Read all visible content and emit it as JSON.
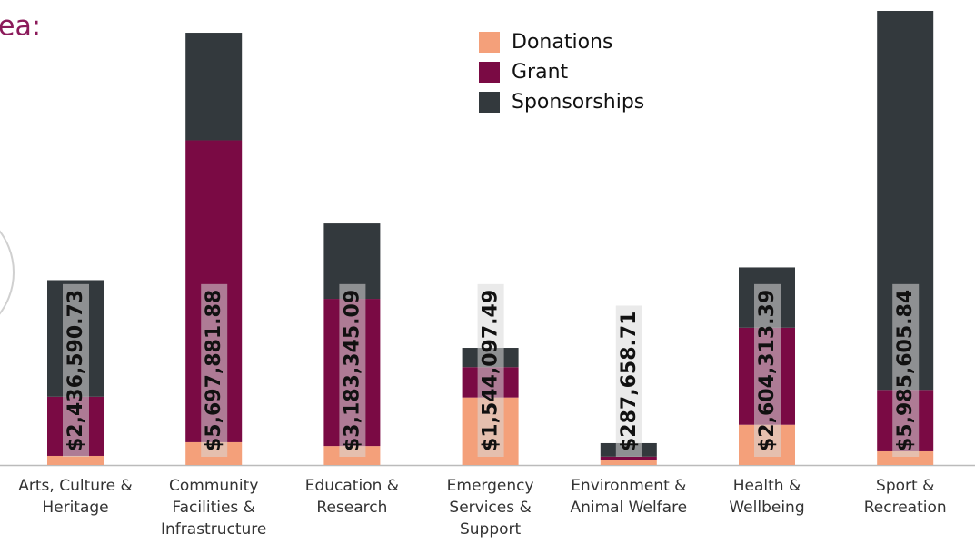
{
  "chart_data": {
    "type": "stacked_bar",
    "title": "ea:",
    "categories": [
      "Arts, Culture &\nHeritage",
      "Community\nFacilities &\nInfrastructure",
      "Education &\nResearch",
      "Emergency\nServices &\nSupport",
      "Environment &\nAnimal Welfare",
      "Health &\nWellbeing",
      "Sport &\nRecreation"
    ],
    "series": [
      {
        "name": "Donations",
        "color": "#f4a07a",
        "values": [
          120000,
          300000,
          250000,
          890000,
          60000,
          530000,
          180000
        ]
      },
      {
        "name": "Grant",
        "color": "#7a0a44",
        "values": [
          780000,
          3980000,
          1940000,
          400000,
          50000,
          1280000,
          810000
        ]
      },
      {
        "name": "Sponsorships",
        "color": "#33393d",
        "values": [
          1536590.73,
          1417881.88,
          993345.09,
          254097.49,
          177658.71,
          794313.39,
          4995605.84
        ]
      }
    ],
    "totals": [
      2436590.73,
      5697881.88,
      3183345.09,
      1544097.49,
      287658.71,
      2604313.39,
      5985605.84
    ],
    "value_labels": [
      "$2,436,590.73",
      "$5,697,881.88",
      "$3,183,345.09",
      "$1,544,097.49",
      "$287,658.71",
      "$2,604,313.39",
      "$5,985,605.84"
    ],
    "legend": "top-center"
  }
}
